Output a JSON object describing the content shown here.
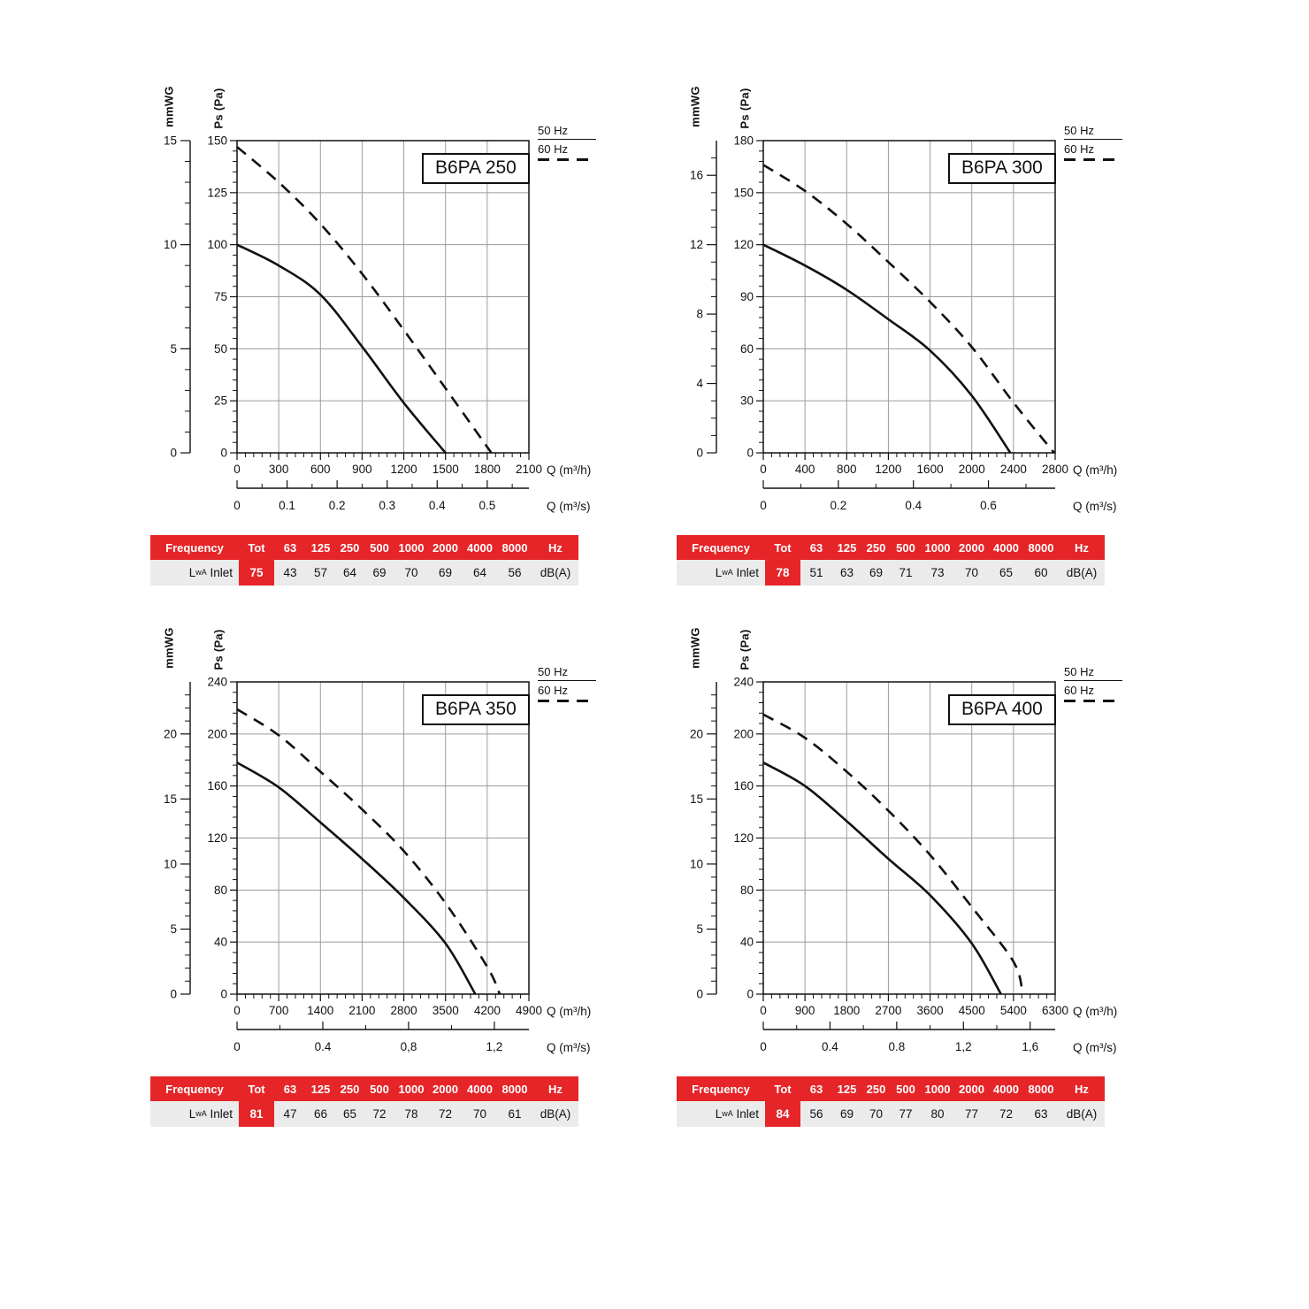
{
  "colors": {
    "red": "#E52528",
    "row_bg": "#EBEBEB",
    "grid": "#9C9C9C",
    "ink": "#111111"
  },
  "legend": {
    "items": [
      {
        "label": "50 Hz",
        "style": "solid"
      },
      {
        "label": "60 Hz",
        "style": "dashed"
      }
    ]
  },
  "chart_data": [
    {
      "type": "line",
      "model": "B6PA 250",
      "y_pa": {
        "label": "Ps (Pa)",
        "max": 150,
        "major": 25,
        "minor": 5,
        "tick_labels": [
          "0",
          "25",
          "50",
          "75",
          "100",
          "125",
          "150"
        ]
      },
      "y_mmwg": {
        "label": "mmWG",
        "ticks": [
          0,
          5,
          10,
          15
        ],
        "pa_per_unit": 10
      },
      "x_h": {
        "label": "Q (m³/h)",
        "max": 2100,
        "major": 300,
        "minor": 60,
        "tick_labels": [
          "0",
          "300",
          "600",
          "900",
          "1200",
          "1500",
          "1800",
          "2100"
        ]
      },
      "x_s": {
        "label": "Q (m³/s)",
        "ticks": [
          "0",
          "0.1",
          "0.2",
          "0.3",
          "0.4",
          "0.5"
        ],
        "tick_values": [
          0,
          0.1,
          0.2,
          0.3,
          0.4,
          0.5
        ],
        "minor_step": 0.05
      },
      "series": [
        {
          "name": "50 Hz",
          "style": "solid",
          "points": [
            [
              0,
              100
            ],
            [
              300,
              90
            ],
            [
              600,
              76
            ],
            [
              900,
              51
            ],
            [
              1200,
              24
            ],
            [
              1500,
              0
            ]
          ]
        },
        {
          "name": "60 Hz",
          "style": "dashed",
          "points": [
            [
              0,
              147
            ],
            [
              300,
              130
            ],
            [
              600,
              110
            ],
            [
              900,
              86
            ],
            [
              1200,
              59
            ],
            [
              1500,
              31
            ],
            [
              1830,
              0
            ]
          ]
        }
      ],
      "table": {
        "header": [
          "Frequency",
          "Tot",
          "63",
          "125",
          "250",
          "500",
          "1000",
          "2000",
          "4000",
          "8000",
          "Hz"
        ],
        "row": {
          "label_main": "L",
          "label_sub": "wA",
          "label_rest": "Inlet",
          "tot": "75",
          "values": [
            "43",
            "57",
            "64",
            "69",
            "70",
            "69",
            "64",
            "56"
          ],
          "unit": "dB(A)"
        }
      }
    },
    {
      "type": "line",
      "model": "B6PA 300",
      "y_pa": {
        "label": "Ps (Pa)",
        "max": 180,
        "major": 30,
        "minor": 6,
        "tick_labels": [
          "0",
          "30",
          "60",
          "90",
          "120",
          "150",
          "180"
        ]
      },
      "y_mmwg": {
        "label": "mmWG",
        "ticks": [
          0,
          4,
          8,
          12,
          16
        ],
        "pa_per_unit": 10
      },
      "x_h": {
        "label": "Q (m³/h)",
        "max": 2800,
        "major": 400,
        "minor": 80,
        "tick_labels": [
          "0",
          "400",
          "800",
          "1200",
          "1600",
          "2000",
          "2400",
          "2800"
        ]
      },
      "x_s": {
        "label": "Q (m³/s)",
        "ticks": [
          "0",
          "0.2",
          "0.4",
          "0.6"
        ],
        "tick_values": [
          0,
          0.2,
          0.4,
          0.6
        ],
        "minor_step": 0.1
      },
      "series": [
        {
          "name": "50 Hz",
          "style": "solid",
          "points": [
            [
              0,
              120
            ],
            [
              400,
              108
            ],
            [
              800,
              94
            ],
            [
              1200,
              77
            ],
            [
              1600,
              59
            ],
            [
              2000,
              33
            ],
            [
              2370,
              0
            ]
          ]
        },
        {
          "name": "60 Hz",
          "style": "dashed",
          "points": [
            [
              0,
              166
            ],
            [
              400,
              151
            ],
            [
              800,
              132
            ],
            [
              1200,
              110
            ],
            [
              1600,
              87
            ],
            [
              2000,
              61
            ],
            [
              2400,
              29
            ],
            [
              2790,
              0
            ]
          ]
        }
      ],
      "table": {
        "header": [
          "Frequency",
          "Tot",
          "63",
          "125",
          "250",
          "500",
          "1000",
          "2000",
          "4000",
          "8000",
          "Hz"
        ],
        "row": {
          "label_main": "L",
          "label_sub": "wA",
          "label_rest": "Inlet",
          "tot": "78",
          "values": [
            "51",
            "63",
            "69",
            "71",
            "73",
            "70",
            "65",
            "60"
          ],
          "unit": "dB(A)"
        }
      }
    },
    {
      "type": "line",
      "model": "B6PA 350",
      "y_pa": {
        "label": "Ps (Pa)",
        "max": 240,
        "major": 40,
        "minor": 8,
        "tick_labels": [
          "0",
          "40",
          "80",
          "120",
          "160",
          "200",
          "240"
        ]
      },
      "y_mmwg": {
        "label": "mmWG",
        "ticks": [
          0,
          5,
          10,
          15,
          20
        ],
        "pa_per_unit": 10
      },
      "x_h": {
        "label": "Q (m³/h)",
        "max": 4900,
        "major": 700,
        "minor": 140,
        "tick_labels": [
          "0",
          "700",
          "1400",
          "2100",
          "2800",
          "3500",
          "4200",
          "4900"
        ]
      },
      "x_s": {
        "label": "Q (m³/s)",
        "ticks": [
          "0",
          "0.4",
          "0,8",
          "1,2"
        ],
        "tick_values": [
          0,
          0.4,
          0.8,
          1.2
        ],
        "minor_step": 0.2
      },
      "series": [
        {
          "name": "50 Hz",
          "style": "solid",
          "points": [
            [
              0,
              178
            ],
            [
              700,
              159
            ],
            [
              1400,
              132
            ],
            [
              2100,
              104
            ],
            [
              2800,
              74
            ],
            [
              3500,
              39
            ],
            [
              4000,
              0
            ]
          ]
        },
        {
          "name": "60 Hz",
          "style": "dashed",
          "points": [
            [
              0,
              219
            ],
            [
              700,
              199
            ],
            [
              1400,
              171
            ],
            [
              2100,
              142
            ],
            [
              2800,
              110
            ],
            [
              3500,
              70
            ],
            [
              4200,
              21
            ],
            [
              4410,
              0
            ]
          ]
        }
      ],
      "table": {
        "header": [
          "Frequency",
          "Tot",
          "63",
          "125",
          "250",
          "500",
          "1000",
          "2000",
          "4000",
          "8000",
          "Hz"
        ],
        "row": {
          "label_main": "L",
          "label_sub": "wA",
          "label_rest": "Inlet",
          "tot": "81",
          "values": [
            "47",
            "66",
            "65",
            "72",
            "78",
            "72",
            "70",
            "61"
          ],
          "unit": "dB(A)"
        }
      }
    },
    {
      "type": "line",
      "model": "B6PA 400",
      "y_pa": {
        "label": "Ps (Pa)",
        "max": 240,
        "major": 40,
        "minor": 8,
        "tick_labels": [
          "0",
          "40",
          "80",
          "120",
          "160",
          "200",
          "240"
        ]
      },
      "y_mmwg": {
        "label": "mmWG",
        "ticks": [
          0,
          5,
          10,
          15,
          20
        ],
        "pa_per_unit": 10
      },
      "x_h": {
        "label": "Q (m³/h)",
        "max": 6300,
        "major": 900,
        "minor": 180,
        "tick_labels": [
          "0",
          "900",
          "1800",
          "2700",
          "3600",
          "4500",
          "5400",
          "6300"
        ]
      },
      "x_s": {
        "label": "Q (m³/s)",
        "ticks": [
          "0",
          "0.4",
          "0.8",
          "1,2",
          "1,6"
        ],
        "tick_values": [
          0,
          0.4,
          0.8,
          1.2,
          1.6
        ],
        "minor_step": 0.2
      },
      "series": [
        {
          "name": "50 Hz",
          "style": "solid",
          "points": [
            [
              0,
              178
            ],
            [
              900,
              160
            ],
            [
              1800,
              133
            ],
            [
              2700,
              104
            ],
            [
              3600,
              76
            ],
            [
              4500,
              39
            ],
            [
              5130,
              0
            ]
          ]
        },
        {
          "name": "60 Hz",
          "style": "dashed",
          "points": [
            [
              0,
              215
            ],
            [
              900,
              197
            ],
            [
              1800,
              171
            ],
            [
              2700,
              141
            ],
            [
              3600,
              107
            ],
            [
              4500,
              67
            ],
            [
              5400,
              25
            ],
            [
              5600,
              0
            ]
          ]
        }
      ],
      "table": {
        "header": [
          "Frequency",
          "Tot",
          "63",
          "125",
          "250",
          "500",
          "1000",
          "2000",
          "4000",
          "8000",
          "Hz"
        ],
        "row": {
          "label_main": "L",
          "label_sub": "wA",
          "label_rest": "Inlet",
          "tot": "84",
          "values": [
            "56",
            "69",
            "70",
            "77",
            "80",
            "77",
            "72",
            "63"
          ],
          "unit": "dB(A)"
        }
      }
    }
  ]
}
